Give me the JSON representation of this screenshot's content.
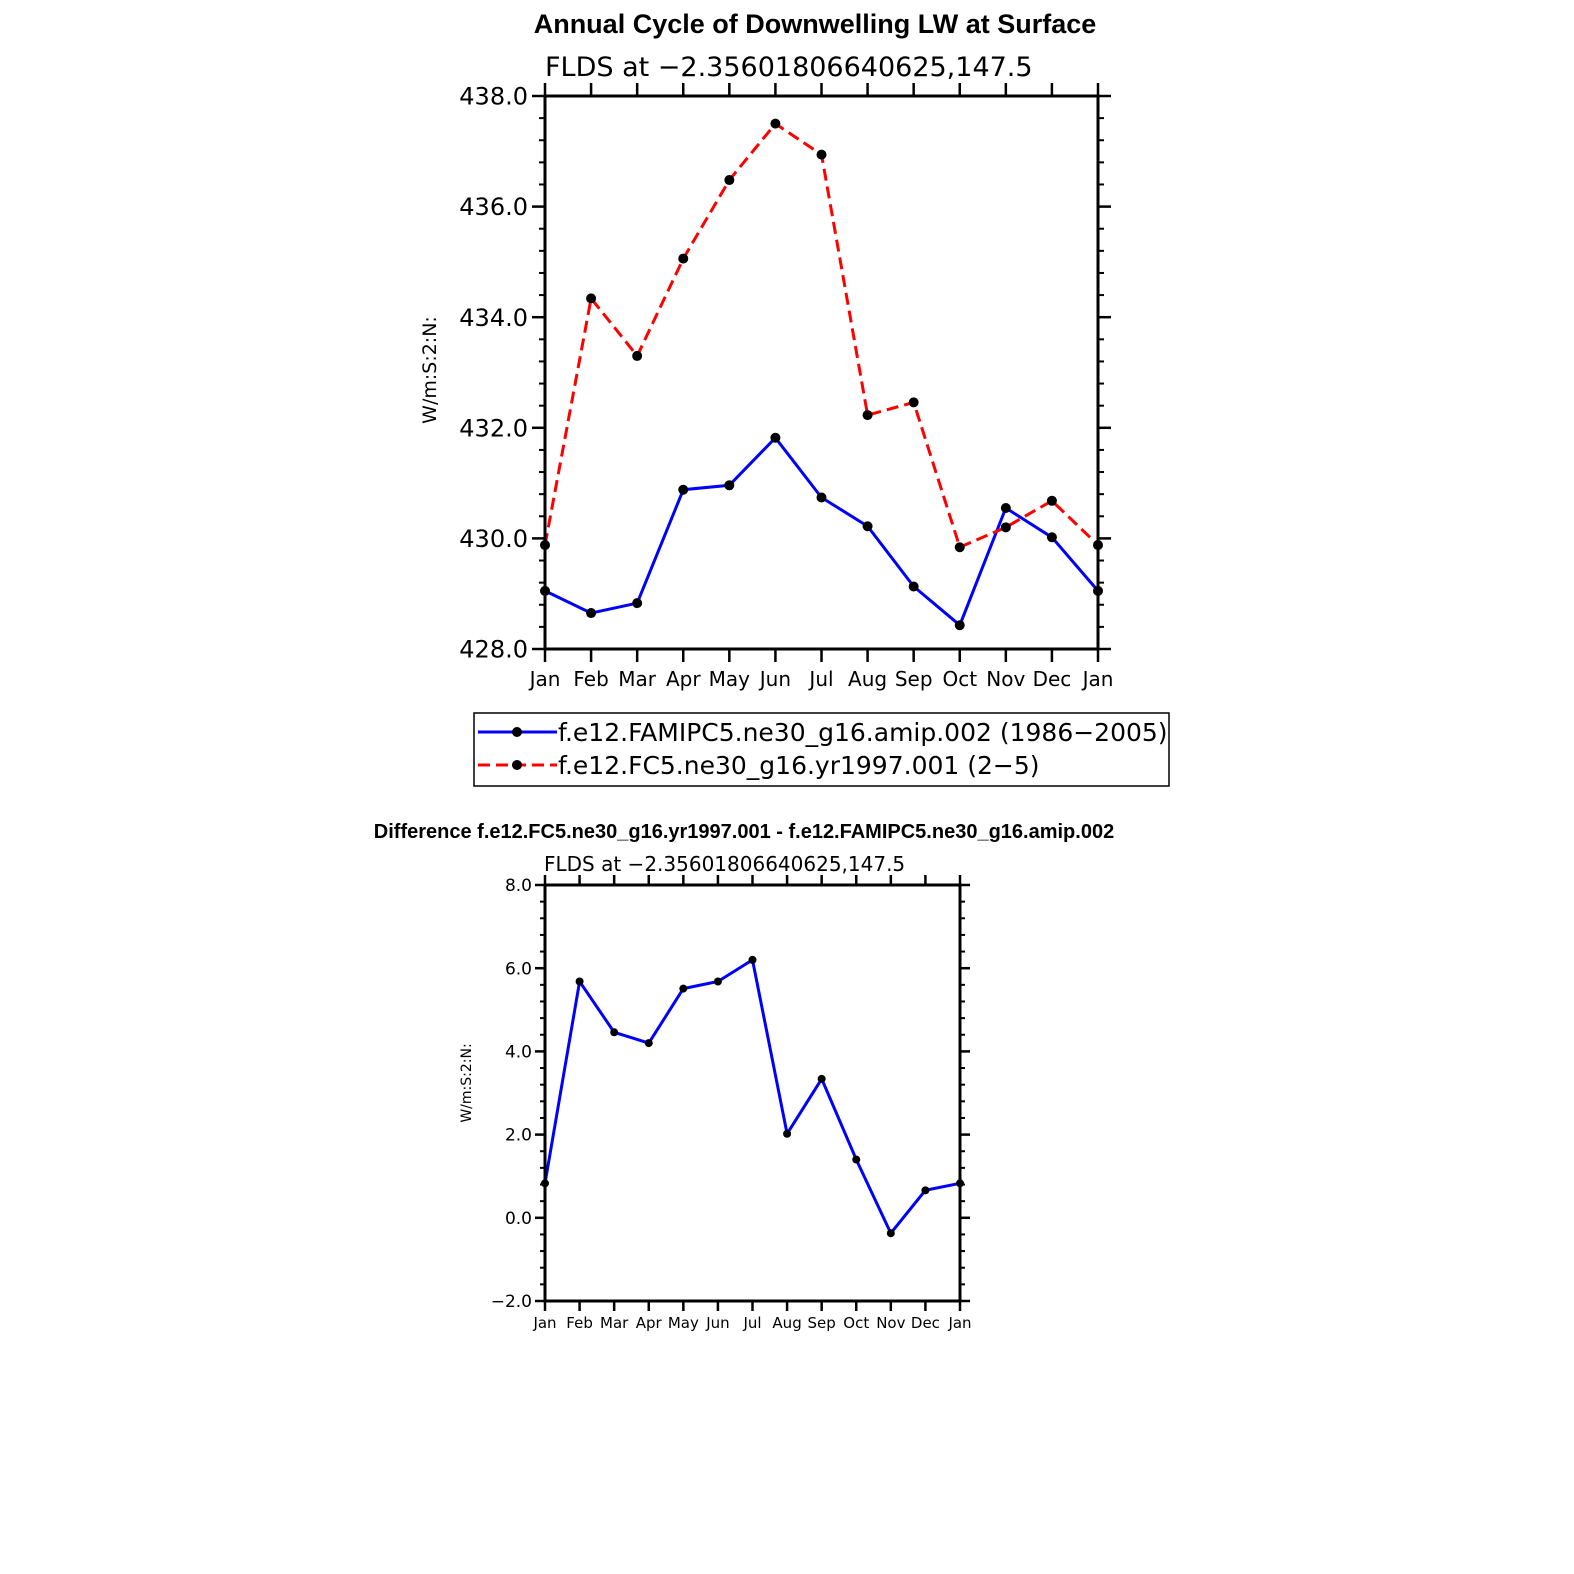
{
  "chart_data": [
    {
      "type": "line",
      "title": "Annual Cycle of Downwelling LW at Surface",
      "subtitle": "FLDS at −2.35601806640625,147.5",
      "ylabel": "W/m:S:2:N:",
      "xlabel": "",
      "ylim": [
        428.0,
        438.0
      ],
      "yticks": [
        "438.0",
        "436.0",
        "434.0",
        "432.0",
        "430.0",
        "428.0"
      ],
      "categories": [
        "Jan",
        "Feb",
        "Mar",
        "Apr",
        "May",
        "Jun",
        "Jul",
        "Aug",
        "Sep",
        "Oct",
        "Nov",
        "Dec",
        "Jan"
      ],
      "series": [
        {
          "name": "f.e12.FAMIPC5.ne30_g16.amip.002 (1986−2005)",
          "color": "#0000ff",
          "dash": "solid",
          "values": [
            429.05,
            428.65,
            428.83,
            430.88,
            430.96,
            431.82,
            430.74,
            430.22,
            429.13,
            428.43,
            430.55,
            430.02,
            429.05
          ]
        },
        {
          "name": "f.e12.FC5.ne30_g16.yr1997.001 (2−5)",
          "color": "#ff0000",
          "dash": "dashed",
          "values": [
            429.88,
            434.34,
            433.3,
            435.06,
            436.48,
            437.5,
            436.94,
            432.23,
            432.46,
            429.84,
            430.2,
            430.68,
            429.88
          ]
        }
      ],
      "legend_position": "bottom"
    },
    {
      "type": "line",
      "title": "Difference f.e12.FC5.ne30_g16.yr1997.001 - f.e12.FAMIPC5.ne30_g16.amip.002",
      "subtitle": "FLDS at −2.35601806640625,147.5",
      "ylabel": "W/m:S:2:N:",
      "xlabel": "",
      "ylim": [
        -2.0,
        8.0
      ],
      "yticks": [
        "8.0",
        "6.0",
        "4.0",
        "2.0",
        "0.0",
        "−2.0"
      ],
      "categories": [
        "Jan",
        "Feb",
        "Mar",
        "Apr",
        "May",
        "Jun",
        "Jul",
        "Aug",
        "Sep",
        "Oct",
        "Nov",
        "Dec",
        "Jan"
      ],
      "series": [
        {
          "name": "Difference",
          "color": "#0000ff",
          "dash": "solid",
          "values": [
            0.83,
            5.68,
            4.46,
            4.2,
            5.51,
            5.68,
            6.2,
            2.02,
            3.34,
            1.4,
            -0.37,
            0.66,
            0.83
          ]
        }
      ]
    }
  ]
}
